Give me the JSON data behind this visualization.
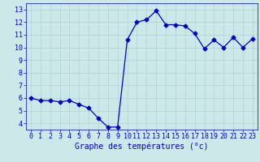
{
  "x": [
    0,
    1,
    2,
    3,
    4,
    5,
    6,
    7,
    8,
    9,
    10,
    11,
    12,
    13,
    14,
    15,
    16,
    17,
    18,
    19,
    20,
    21,
    22,
    23
  ],
  "y": [
    6.0,
    5.8,
    5.8,
    5.7,
    5.8,
    5.5,
    5.2,
    4.4,
    3.7,
    3.7,
    10.6,
    12.0,
    12.2,
    12.9,
    11.8,
    11.8,
    11.7,
    11.1,
    9.9,
    10.6,
    10.0,
    10.8,
    10.0,
    10.7
  ],
  "line_color": "#0000cc",
  "marker": "D",
  "markersize": 2.5,
  "linewidth": 0.9,
  "bg_color": "#cce8e8",
  "grid_color": "#aacccc",
  "xlabel": "Graphe des températures (°c)",
  "xlabel_color": "#0000cc",
  "xlabel_fontsize": 7,
  "tick_color": "#0000cc",
  "tick_fontsize": 6,
  "xlim": [
    -0.5,
    23.5
  ],
  "ylim": [
    3.5,
    13.5
  ],
  "yticks": [
    4,
    5,
    6,
    7,
    8,
    9,
    10,
    11,
    12,
    13
  ],
  "xticks": [
    0,
    1,
    2,
    3,
    4,
    5,
    6,
    7,
    8,
    9,
    10,
    11,
    12,
    13,
    14,
    15,
    16,
    17,
    18,
    19,
    20,
    21,
    22,
    23
  ]
}
